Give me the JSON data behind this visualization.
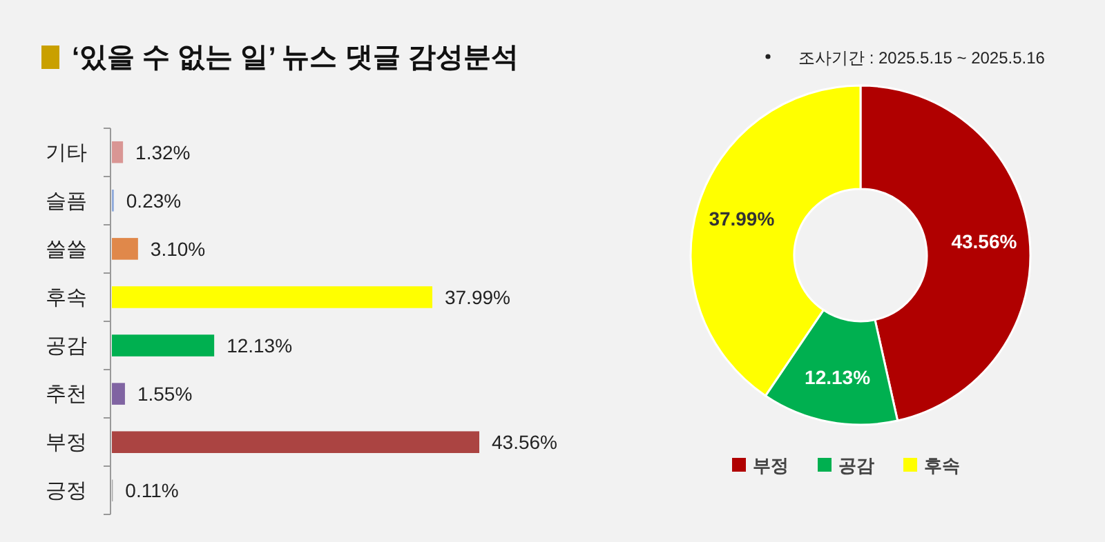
{
  "chart_data": [
    {
      "type": "bar",
      "orientation": "horizontal",
      "title": "‘있을 수 없는 일’ 뉴스 댓글 감성분석",
      "categories": [
        "기타",
        "슬픔",
        "쓸쓸",
        "후속",
        "공감",
        "추천",
        "부정",
        "긍정"
      ],
      "values": [
        1.32,
        0.23,
        3.1,
        37.99,
        12.13,
        1.55,
        43.56,
        0.11
      ],
      "colors": [
        "#d99694",
        "#8ea9db",
        "#e0884a",
        "#ffff00",
        "#00b050",
        "#8064a2",
        "#ab4442",
        "#a5a5a5"
      ],
      "value_labels": [
        "1.32%",
        "0.23%",
        "3.10%",
        "37.99%",
        "12.13%",
        "1.55%",
        "43.56%",
        "0.11%"
      ]
    },
    {
      "type": "donut",
      "annotations": [
        "조사기간 : 2025.5.15 ~ 2025.5.16"
      ],
      "categories": [
        "부정",
        "공감",
        "후속"
      ],
      "values": [
        43.56,
        12.13,
        37.99
      ],
      "colors": [
        "#b00000",
        "#00b050",
        "#ffff00"
      ],
      "value_labels": [
        "43.56%",
        "12.13%",
        "37.99%"
      ],
      "legend": "bottom"
    }
  ]
}
